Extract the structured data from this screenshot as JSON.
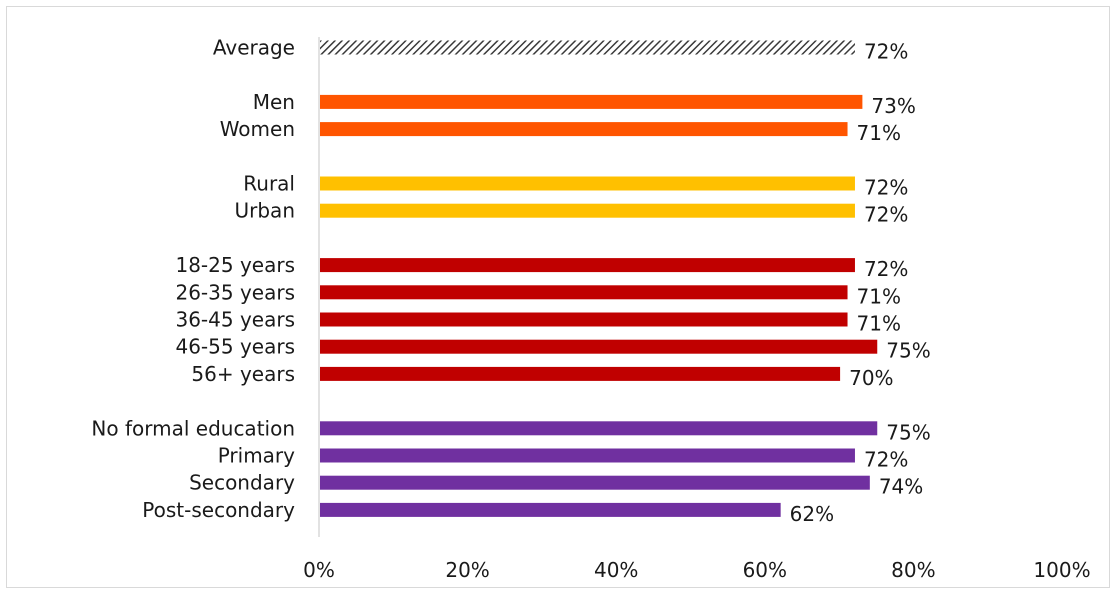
{
  "chart_data": {
    "type": "bar",
    "orientation": "horizontal",
    "title": "",
    "xlabel": "",
    "ylabel": "",
    "xlim": [
      0,
      100
    ],
    "x_ticks": [
      "0%",
      "20%",
      "40%",
      "60%",
      "80%",
      "100%"
    ],
    "x_tick_values": [
      0,
      20,
      40,
      60,
      80,
      100
    ],
    "grid": false,
    "legend": "none",
    "colors": {
      "average": "#3a3a3a",
      "gender": "#ff5500",
      "location": "#ffc000",
      "age": "#c00000",
      "education": "#7030a0"
    },
    "groups": [
      {
        "key": "average",
        "pattern": "hatched",
        "items": [
          {
            "label": "Average",
            "value": 72,
            "value_label": "72%"
          }
        ]
      },
      {
        "key": "gender",
        "items": [
          {
            "label": "Men",
            "value": 73,
            "value_label": "73%"
          },
          {
            "label": "Women",
            "value": 71,
            "value_label": "71%"
          }
        ]
      },
      {
        "key": "location",
        "items": [
          {
            "label": "Rural",
            "value": 72,
            "value_label": "72%"
          },
          {
            "label": "Urban",
            "value": 72,
            "value_label": "72%"
          }
        ]
      },
      {
        "key": "age",
        "items": [
          {
            "label": "18-25 years",
            "value": 72,
            "value_label": "72%"
          },
          {
            "label": "26-35 years",
            "value": 71,
            "value_label": "71%"
          },
          {
            "label": "36-45 years",
            "value": 71,
            "value_label": "71%"
          },
          {
            "label": "46-55 years",
            "value": 75,
            "value_label": "75%"
          },
          {
            "label": "56+ years",
            "value": 70,
            "value_label": "70%"
          }
        ]
      },
      {
        "key": "education",
        "items": [
          {
            "label": "No formal education",
            "value": 75,
            "value_label": "75%"
          },
          {
            "label": "Primary",
            "value": 72,
            "value_label": "72%"
          },
          {
            "label": "Secondary",
            "value": 74,
            "value_label": "74%"
          },
          {
            "label": "Post-secondary",
            "value": 62,
            "value_label": "62%"
          }
        ]
      }
    ]
  }
}
